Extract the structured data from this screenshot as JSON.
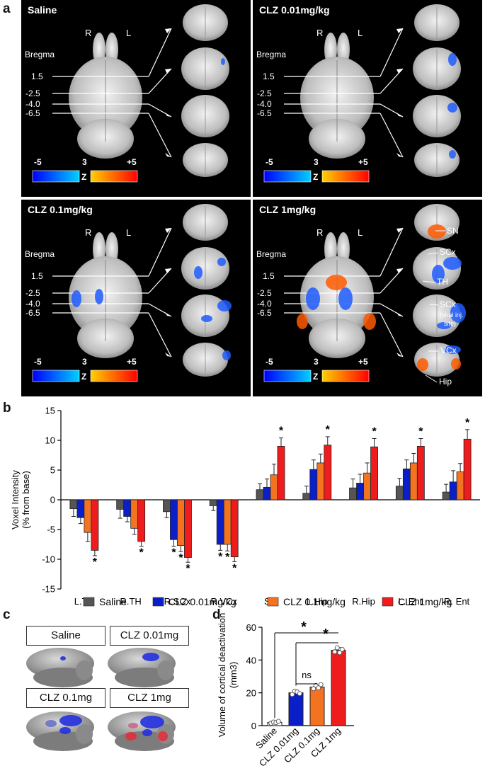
{
  "labels": {
    "a": "a",
    "b": "b",
    "c": "c",
    "d": "d"
  },
  "panel_a": {
    "panels": [
      {
        "title": "Saline"
      },
      {
        "title": "CLZ 0.01mg/kg"
      },
      {
        "title": "CLZ 0.1mg/kg"
      },
      {
        "title": "CLZ 1mg/kg"
      }
    ],
    "side_r": "R",
    "side_l": "L",
    "bregma": "Bregma",
    "levels": [
      "1.5",
      "-2.5",
      "-4.0",
      "-6.5"
    ],
    "scale_min": "-5",
    "scale_mid": "3",
    "scale_max": "+5",
    "scale_z": "Z",
    "region_labels": [
      "SN",
      "SCx",
      "TH",
      "SCx",
      "(viral inj.",
      "site)",
      "VCx",
      "Hip"
    ],
    "colors": {
      "panel_bg": "#000000",
      "deactivation": "#1e5cff",
      "activation": "#ff5a00"
    }
  },
  "chart_data": [
    {
      "type": "bar",
      "title": "",
      "ylabel": "Voxel Intensity (% from base)",
      "ylabel_lines": [
        "Voxel Intensity",
        "(% from base)"
      ],
      "ylim": [
        -15,
        15
      ],
      "yticks": [
        "15",
        "10",
        "5",
        "0",
        "-5",
        "-10",
        "-15"
      ],
      "categories": [
        "L.TH",
        "R.TH",
        "R.SCx",
        "R.VCx",
        "SN",
        "L.Hip",
        "R.Hip",
        "L. Ent",
        "R. Ent"
      ],
      "series": [
        {
          "name": "Saline",
          "color": "#555555",
          "values": [
            -1.5,
            -1.6,
            -2.0,
            -1.0,
            1.7,
            1.1,
            2.0,
            2.3,
            1.3
          ],
          "errors": [
            1.3,
            1.5,
            1.0,
            0.8,
            1.0,
            1.2,
            1.5,
            1.3,
            1.3
          ]
        },
        {
          "name": "CLZ 0.01mg/kg",
          "color": "#0b1fc8",
          "values": [
            -3.0,
            -2.8,
            -6.7,
            -7.5,
            2.1,
            5.1,
            2.8,
            5.2,
            3.0
          ],
          "errors": [
            1.0,
            0.9,
            1.1,
            1.0,
            1.4,
            1.6,
            1.5,
            1.5,
            1.9
          ]
        },
        {
          "name": "CLZ 0.1mg/kg",
          "color": "#f37321",
          "values": [
            -5.5,
            -4.8,
            -7.7,
            -7.5,
            4.2,
            6.2,
            4.5,
            6.2,
            4.7
          ],
          "errors": [
            1.5,
            1.0,
            1.0,
            1.1,
            1.8,
            1.5,
            1.7,
            1.6,
            1.4
          ]
        },
        {
          "name": "CLZ 1mg/kg",
          "color": "#ee1c1c",
          "values": [
            -8.5,
            -7.0,
            -9.7,
            -9.6,
            9.0,
            9.2,
            8.9,
            9.0,
            10.2
          ],
          "errors": [
            0.9,
            0.8,
            0.8,
            0.8,
            1.4,
            1.4,
            1.4,
            1.3,
            1.6
          ]
        }
      ],
      "significance": [
        [
          0,
          3
        ],
        [
          1,
          3
        ],
        [
          2,
          1
        ],
        [
          2,
          2
        ],
        [
          2,
          3
        ],
        [
          3,
          1
        ],
        [
          3,
          2
        ],
        [
          3,
          3
        ],
        [
          4,
          3
        ],
        [
          5,
          3
        ],
        [
          6,
          3
        ],
        [
          7,
          3
        ],
        [
          8,
          3
        ]
      ],
      "sig_marker": "*"
    },
    {
      "type": "bar",
      "title": "",
      "ylabel": "Volume of cortical deactivation (mm3)",
      "ylabel_lines": [
        "Volume of cortical deactivation",
        "(mm3)"
      ],
      "ylim": [
        0,
        60
      ],
      "yticks": [
        "60",
        "40",
        "20",
        "0"
      ],
      "categories": [
        "Saline",
        "CLZ 0.01mg",
        "CLZ 0.1mg",
        "CLZ 1mg"
      ],
      "values": [
        2.0,
        20.0,
        23.5,
        46.0
      ],
      "errors": [
        0.5,
        1.3,
        1.3,
        1.6
      ],
      "colors": [
        "#ffffff",
        "#0b1fc8",
        "#f37321",
        "#ee1c1c"
      ],
      "points": [
        [
          1.5,
          2.2,
          1.8,
          2.6
        ],
        [
          19,
          21,
          20.5,
          19.5
        ],
        [
          22.5,
          24.5,
          23.0,
          25.0
        ],
        [
          45,
          47.5,
          44.5,
          46.5
        ]
      ],
      "comparisons": [
        {
          "from": 0,
          "to": 3,
          "label": "*"
        },
        {
          "from": 1,
          "to": 3,
          "label": "*"
        },
        {
          "from": 1,
          "to": 2,
          "label": "ns"
        }
      ]
    }
  ],
  "legend_b": {
    "items": [
      "Saline",
      "CLZ 0.01mg/kg",
      "CLZ 0.1mg/kg",
      "CLZ 1mg/kg"
    ]
  },
  "panel_c": {
    "boxes": [
      "Saline",
      "CLZ 0.01mg",
      "CLZ 0.1mg",
      "CLZ 1mg"
    ]
  }
}
